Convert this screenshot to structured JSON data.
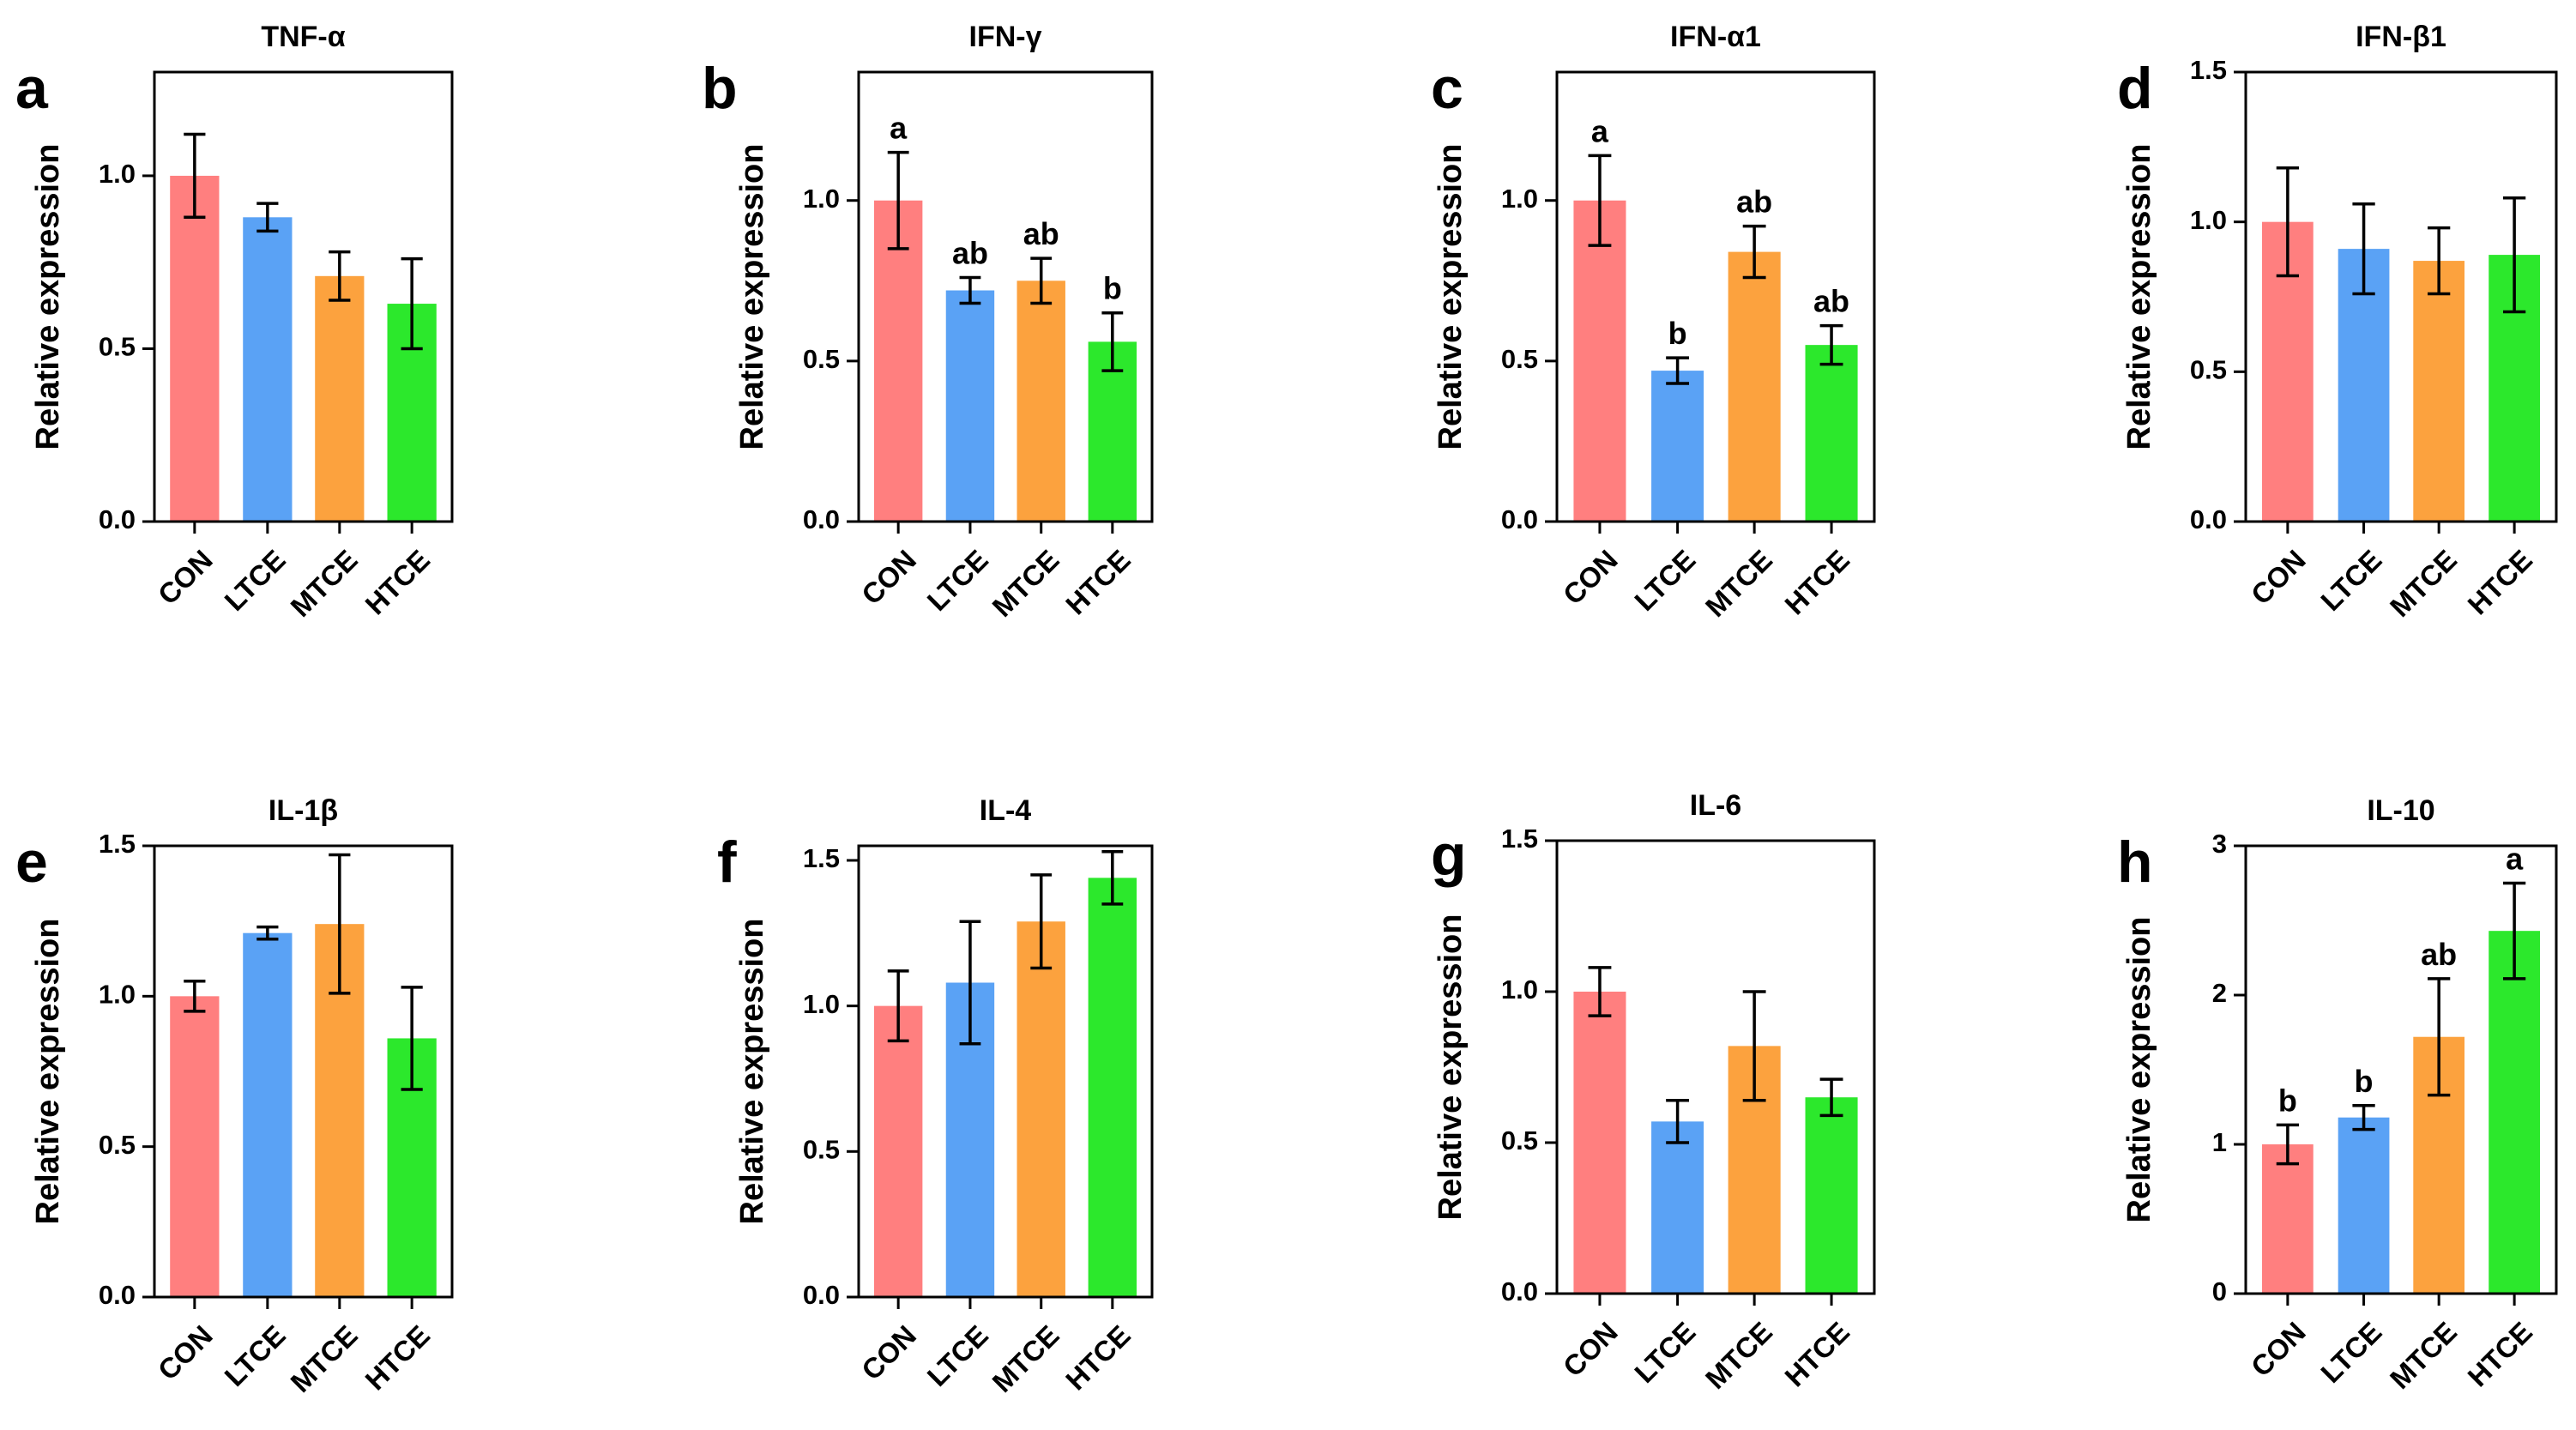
{
  "figure": {
    "y_axis_label": "Relative expression",
    "categories": [
      "CON",
      "LTCE",
      "MTCE",
      "HTCE"
    ],
    "colors": {
      "CON": "#ff7f7f",
      "LTCE": "#5aa2f5",
      "MTCE": "#fca23e",
      "HTCE": "#2ce82c"
    }
  },
  "chart_data": [
    {
      "type": "bar",
      "panel": "a",
      "title": "TNF-α",
      "categories": [
        "CON",
        "LTCE",
        "MTCE",
        "HTCE"
      ],
      "values": [
        1.0,
        0.88,
        0.71,
        0.63
      ],
      "errors": [
        0.12,
        0.04,
        0.07,
        0.13
      ],
      "significance": [
        "",
        "",
        "",
        ""
      ],
      "ylabel": "Relative expression",
      "ylim": [
        0,
        1.3
      ],
      "yticks": [
        0.0,
        0.5,
        1.0
      ],
      "ytick_labels": [
        "0.0",
        "0.5",
        "1.0"
      ]
    },
    {
      "type": "bar",
      "panel": "b",
      "title": "IFN-γ",
      "categories": [
        "CON",
        "LTCE",
        "MTCE",
        "HTCE"
      ],
      "values": [
        1.0,
        0.72,
        0.75,
        0.56
      ],
      "errors": [
        0.15,
        0.04,
        0.07,
        0.09
      ],
      "significance": [
        "a",
        "ab",
        "ab",
        "b"
      ],
      "ylabel": "Relative expression",
      "ylim": [
        0,
        1.4
      ],
      "yticks": [
        0.0,
        0.5,
        1.0
      ],
      "ytick_labels": [
        "0.0",
        "0.5",
        "1.0"
      ]
    },
    {
      "type": "bar",
      "panel": "c",
      "title": "IFN-α1",
      "categories": [
        "CON",
        "LTCE",
        "MTCE",
        "HTCE"
      ],
      "values": [
        1.0,
        0.47,
        0.84,
        0.55
      ],
      "errors": [
        0.14,
        0.04,
        0.08,
        0.06
      ],
      "significance": [
        "a",
        "b",
        "ab",
        "ab"
      ],
      "ylabel": "Relative expression",
      "ylim": [
        0,
        1.4
      ],
      "yticks": [
        0.0,
        0.5,
        1.0
      ],
      "ytick_labels": [
        "0.0",
        "0.5",
        "1.0"
      ]
    },
    {
      "type": "bar",
      "panel": "d",
      "title": "IFN-β1",
      "categories": [
        "CON",
        "LTCE",
        "MTCE",
        "HTCE"
      ],
      "values": [
        1.0,
        0.91,
        0.87,
        0.89
      ],
      "errors": [
        0.18,
        0.15,
        0.11,
        0.19
      ],
      "significance": [
        "",
        "",
        "",
        ""
      ],
      "ylabel": "Relative expression",
      "ylim": [
        0,
        1.5
      ],
      "yticks": [
        0.0,
        0.5,
        1.0,
        1.5
      ],
      "ytick_labels": [
        "0.0",
        "0.5",
        "1.0",
        "1.5"
      ]
    },
    {
      "type": "bar",
      "panel": "e",
      "title": "IL-1β",
      "categories": [
        "CON",
        "LTCE",
        "MTCE",
        "HTCE"
      ],
      "values": [
        1.0,
        1.21,
        1.24,
        0.86
      ],
      "errors": [
        0.05,
        0.02,
        0.23,
        0.17
      ],
      "significance": [
        "",
        "",
        "",
        ""
      ],
      "ylabel": "Relative expression",
      "ylim": [
        0,
        1.5
      ],
      "yticks": [
        0.0,
        0.5,
        1.0,
        1.5
      ],
      "ytick_labels": [
        "0.0",
        "0.5",
        "1.0",
        "1.5"
      ]
    },
    {
      "type": "bar",
      "panel": "f",
      "title": "IL-4",
      "categories": [
        "CON",
        "LTCE",
        "MTCE",
        "HTCE"
      ],
      "values": [
        1.0,
        1.08,
        1.29,
        1.44
      ],
      "errors": [
        0.12,
        0.21,
        0.16,
        0.09
      ],
      "significance": [
        "",
        "",
        "",
        ""
      ],
      "ylabel": "Relative expression",
      "ylim": [
        0,
        1.55
      ],
      "yticks": [
        0.0,
        0.5,
        1.0,
        1.5
      ],
      "ytick_labels": [
        "0.0",
        "0.5",
        "1.0",
        "1.5"
      ]
    },
    {
      "type": "bar",
      "panel": "g",
      "title": "IL-6",
      "categories": [
        "CON",
        "LTCE",
        "MTCE",
        "HTCE"
      ],
      "values": [
        1.0,
        0.57,
        0.82,
        0.65
      ],
      "errors": [
        0.08,
        0.07,
        0.18,
        0.06
      ],
      "significance": [
        "",
        "",
        "",
        ""
      ],
      "ylabel": "Relative expression",
      "ylim": [
        0,
        1.5
      ],
      "yticks": [
        0.0,
        0.5,
        1.0,
        1.5
      ],
      "ytick_labels": [
        "0.0",
        "0.5",
        "1.0",
        "1.5"
      ]
    },
    {
      "type": "bar",
      "panel": "h",
      "title": "IL-10",
      "categories": [
        "CON",
        "LTCE",
        "MTCE",
        "HTCE"
      ],
      "values": [
        1.0,
        1.18,
        1.72,
        2.43
      ],
      "errors": [
        0.13,
        0.08,
        0.39,
        0.32
      ],
      "significance": [
        "b",
        "b",
        "ab",
        "a"
      ],
      "ylabel": "Relative expression",
      "ylim": [
        0,
        3
      ],
      "yticks": [
        0,
        1,
        2,
        3
      ],
      "ytick_labels": [
        "0",
        "1",
        "2",
        "3"
      ]
    }
  ]
}
